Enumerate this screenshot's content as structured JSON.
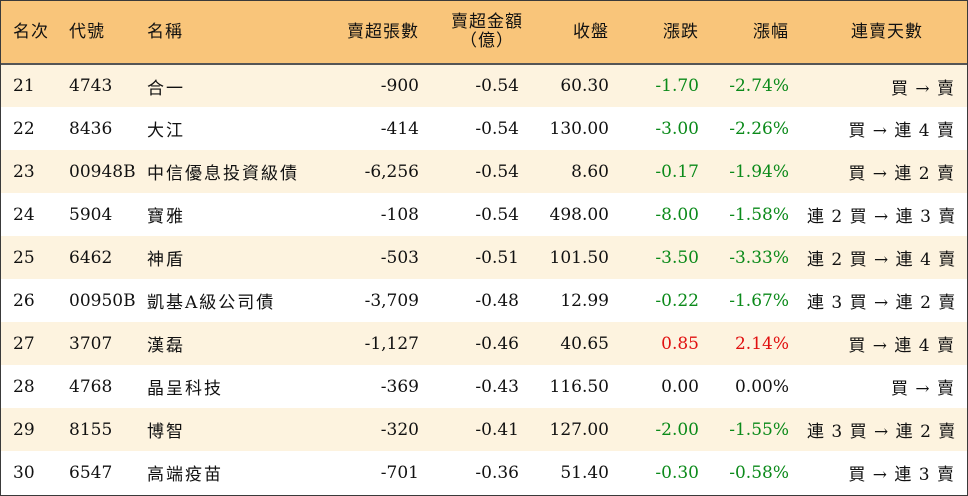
{
  "header": {
    "rank": "名次",
    "code": "代號",
    "name": "名稱",
    "sell_shares": "賣超張數",
    "sell_amount_line1": "賣超金額",
    "sell_amount_line2": "（億）",
    "close": "收盤",
    "change": "漲跌",
    "pct": "漲幅",
    "streak": "連賣天數"
  },
  "colors": {
    "header_bg": "#f9c57a",
    "stripe_bg": "#fdf3df",
    "down": "#0b8a1a",
    "up": "#e11010"
  },
  "rows": [
    {
      "rank": "21",
      "code": "4743",
      "name": "合一",
      "sell_shares": "-900",
      "sell_amount": "-0.54",
      "close": "60.30",
      "change": "-1.70",
      "pct": "-2.74%",
      "streak": "買 → 賣",
      "dir": "down"
    },
    {
      "rank": "22",
      "code": "8436",
      "name": "大江",
      "sell_shares": "-414",
      "sell_amount": "-0.54",
      "close": "130.00",
      "change": "-3.00",
      "pct": "-2.26%",
      "streak": "買 → 連 4 賣",
      "dir": "down"
    },
    {
      "rank": "23",
      "code": "00948B",
      "name": "中信優息投資級債",
      "sell_shares": "-6,256",
      "sell_amount": "-0.54",
      "close": "8.60",
      "change": "-0.17",
      "pct": "-1.94%",
      "streak": "買 → 連 2 賣",
      "dir": "down"
    },
    {
      "rank": "24",
      "code": "5904",
      "name": "寶雅",
      "sell_shares": "-108",
      "sell_amount": "-0.54",
      "close": "498.00",
      "change": "-8.00",
      "pct": "-1.58%",
      "streak": "連 2 買 → 連 3 賣",
      "dir": "down"
    },
    {
      "rank": "25",
      "code": "6462",
      "name": "神盾",
      "sell_shares": "-503",
      "sell_amount": "-0.51",
      "close": "101.50",
      "change": "-3.50",
      "pct": "-3.33%",
      "streak": "連 2 買 → 連 4 賣",
      "dir": "down"
    },
    {
      "rank": "26",
      "code": "00950B",
      "name": "凱基A級公司債",
      "sell_shares": "-3,709",
      "sell_amount": "-0.48",
      "close": "12.99",
      "change": "-0.22",
      "pct": "-1.67%",
      "streak": "連 3 買 → 連 2 賣",
      "dir": "down"
    },
    {
      "rank": "27",
      "code": "3707",
      "name": "漢磊",
      "sell_shares": "-1,127",
      "sell_amount": "-0.46",
      "close": "40.65",
      "change": "0.85",
      "pct": "2.14%",
      "streak": "買 → 連 4 賣",
      "dir": "up"
    },
    {
      "rank": "28",
      "code": "4768",
      "name": "晶呈科技",
      "sell_shares": "-369",
      "sell_amount": "-0.43",
      "close": "116.50",
      "change": "0.00",
      "pct": "0.00%",
      "streak": "買 → 賣",
      "dir": "flat"
    },
    {
      "rank": "29",
      "code": "8155",
      "name": "博智",
      "sell_shares": "-320",
      "sell_amount": "-0.41",
      "close": "127.00",
      "change": "-2.00",
      "pct": "-1.55%",
      "streak": "連 3 買 → 連 2 賣",
      "dir": "down"
    },
    {
      "rank": "30",
      "code": "6547",
      "name": "高端疫苗",
      "sell_shares": "-701",
      "sell_amount": "-0.36",
      "close": "51.40",
      "change": "-0.30",
      "pct": "-0.58%",
      "streak": "買 → 連 3 賣",
      "dir": "down"
    }
  ]
}
